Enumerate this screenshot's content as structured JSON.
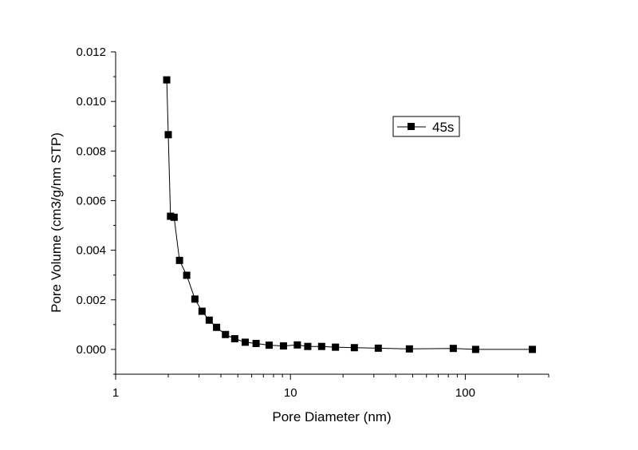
{
  "chart_data": {
    "type": "scatter",
    "xlabel": "Pore Diameter (nm)",
    "ylabel": "Pore Volume (cm3/g/nm STP)",
    "xscale": "log",
    "xlim": [
      1,
      300
    ],
    "ylim": [
      -0.001,
      0.012
    ],
    "xticks": [
      1,
      10,
      100
    ],
    "xtick_labels": [
      "1",
      "10",
      "100"
    ],
    "yticks": [
      0.0,
      0.002,
      0.004,
      0.006,
      0.008,
      0.01,
      0.012
    ],
    "ytick_labels": [
      "0.000",
      "0.002",
      "0.004",
      "0.006",
      "0.008",
      "0.010",
      "0.012"
    ],
    "grid": false,
    "legend_position": "top-right",
    "line_color": "#000000",
    "marker": "square",
    "series": [
      {
        "name": "45s",
        "x": [
          1.96,
          2.0,
          2.06,
          2.16,
          2.32,
          2.55,
          2.84,
          3.12,
          3.43,
          3.78,
          4.25,
          4.8,
          5.51,
          6.36,
          7.55,
          9.12,
          10.95,
          12.56,
          15.08,
          18.09,
          23.2,
          31.8,
          47.9,
          85.4,
          114.6,
          242.0
        ],
        "y": [
          0.01087,
          0.00866,
          0.00537,
          0.00533,
          0.00359,
          0.00299,
          0.00203,
          0.00154,
          0.00118,
          0.00089,
          0.0006,
          0.00043,
          0.00029,
          0.00024,
          0.00017,
          0.00014,
          0.00018,
          0.00012,
          0.00012,
          9e-05,
          7e-05,
          5e-05,
          2e-05,
          4e-05,
          0.0,
          0.0
        ]
      }
    ]
  }
}
